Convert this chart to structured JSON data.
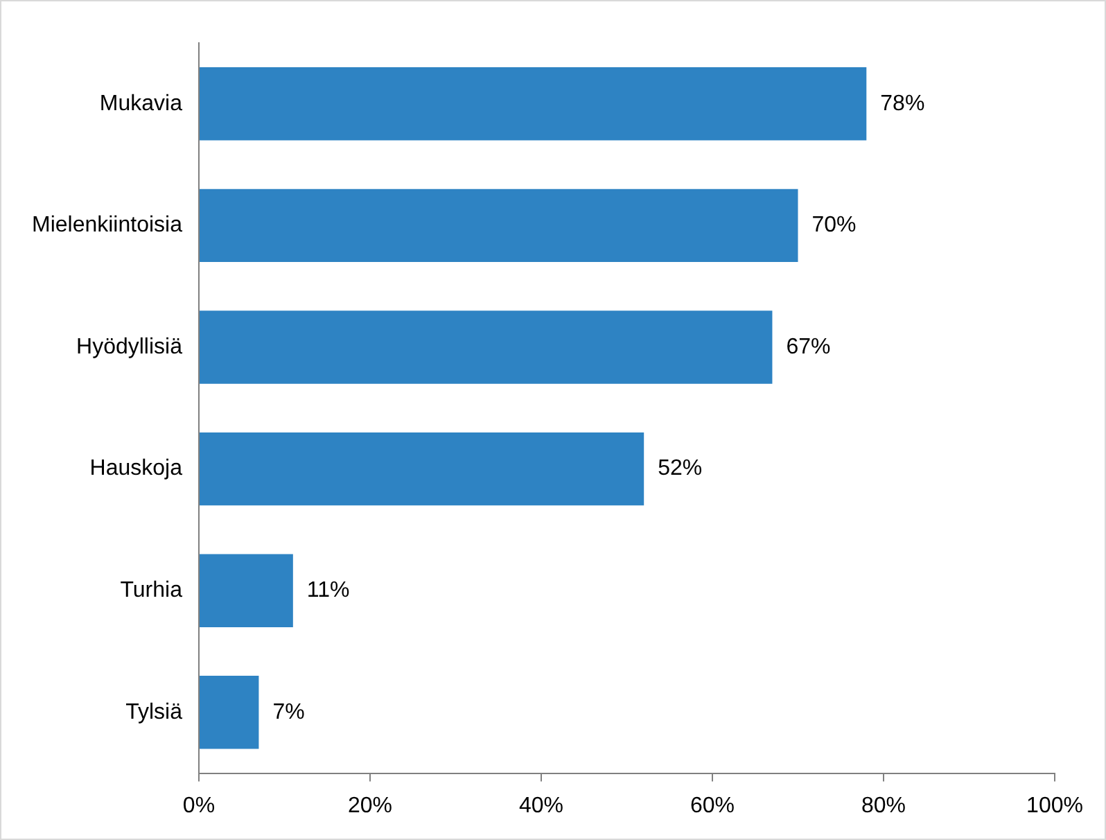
{
  "chart_data": {
    "type": "bar",
    "orientation": "horizontal",
    "categories": [
      "Mukavia",
      "Mielenkiintoisia",
      "Hyödyllisiä",
      "Hauskoja",
      "Turhia",
      "Tylsiä"
    ],
    "values": [
      78,
      70,
      67,
      52,
      11,
      7
    ],
    "value_labels": [
      "78%",
      "70%",
      "67%",
      "52%",
      "11%",
      "7%"
    ],
    "color": "#2e83c3",
    "xlim": [
      0,
      100
    ],
    "xticks": [
      {
        "value": 0,
        "label": "0%"
      },
      {
        "value": 20,
        "label": "20%"
      },
      {
        "value": 40,
        "label": "40%"
      },
      {
        "value": 60,
        "label": "60%"
      },
      {
        "value": 80,
        "label": "80%"
      },
      {
        "value": 100,
        "label": "100%"
      }
    ]
  }
}
